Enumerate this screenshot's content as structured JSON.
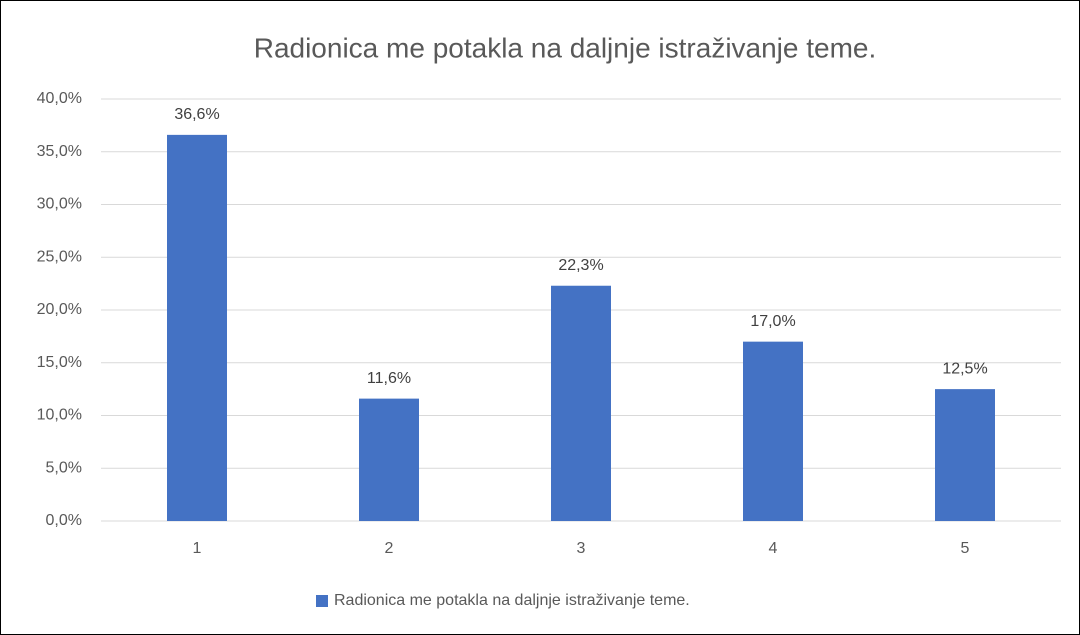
{
  "chart_data": {
    "type": "bar",
    "title": "Radionica me potakla na daljnje istraživanje teme.",
    "categories": [
      "1",
      "2",
      "3",
      "4",
      "5"
    ],
    "series": [
      {
        "name": "Radionica me potakla na daljnje istraživanje teme.",
        "color": "#4472c4",
        "values": [
          36.6,
          11.6,
          22.3,
          17.0,
          12.5
        ],
        "value_labels": [
          "36,6%",
          "11,6%",
          "22,3%",
          "17,0%",
          "12,5%"
        ]
      }
    ],
    "ylim": [
      0,
      40
    ],
    "yticks": [
      {
        "value": 0,
        "label": "0,0%"
      },
      {
        "value": 5,
        "label": "5,0%"
      },
      {
        "value": 10,
        "label": "10,0%"
      },
      {
        "value": 15,
        "label": "15,0%"
      },
      {
        "value": 20,
        "label": "20,0%"
      },
      {
        "value": 25,
        "label": "25,0%"
      },
      {
        "value": 30,
        "label": "30,0%"
      },
      {
        "value": 35,
        "label": "35,0%"
      },
      {
        "value": 40,
        "label": "40,0%"
      }
    ],
    "grid": true,
    "legend": "bottom"
  }
}
